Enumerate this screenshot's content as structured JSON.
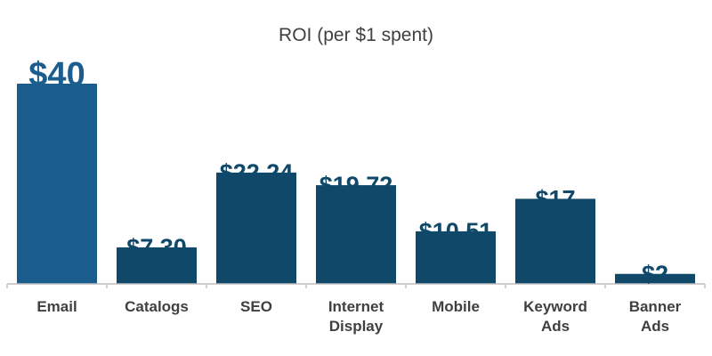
{
  "chart_data": {
    "type": "bar",
    "title": "ROI (per $1 spent)",
    "categories": [
      [
        "Email"
      ],
      [
        "Catalogs"
      ],
      [
        "SEO"
      ],
      [
        "Internet",
        "Display"
      ],
      [
        "Mobile"
      ],
      [
        "Keyword",
        "Ads"
      ],
      [
        "Banner",
        "Ads"
      ]
    ],
    "values": [
      40,
      7.3,
      22.24,
      19.72,
      10.51,
      17,
      2
    ],
    "data_labels": [
      "$40",
      "$7.30",
      "$22.24",
      "$19.72",
      "$10.51",
      "$17",
      "$2"
    ],
    "xlabel": "",
    "ylabel": "",
    "ylim": [
      0,
      40
    ],
    "grid": false,
    "legend": "none",
    "colors": {
      "highlight": "#1b5e8e",
      "bar": "#0f4869",
      "axis": "#bfbfbf",
      "text": "#404040"
    }
  }
}
